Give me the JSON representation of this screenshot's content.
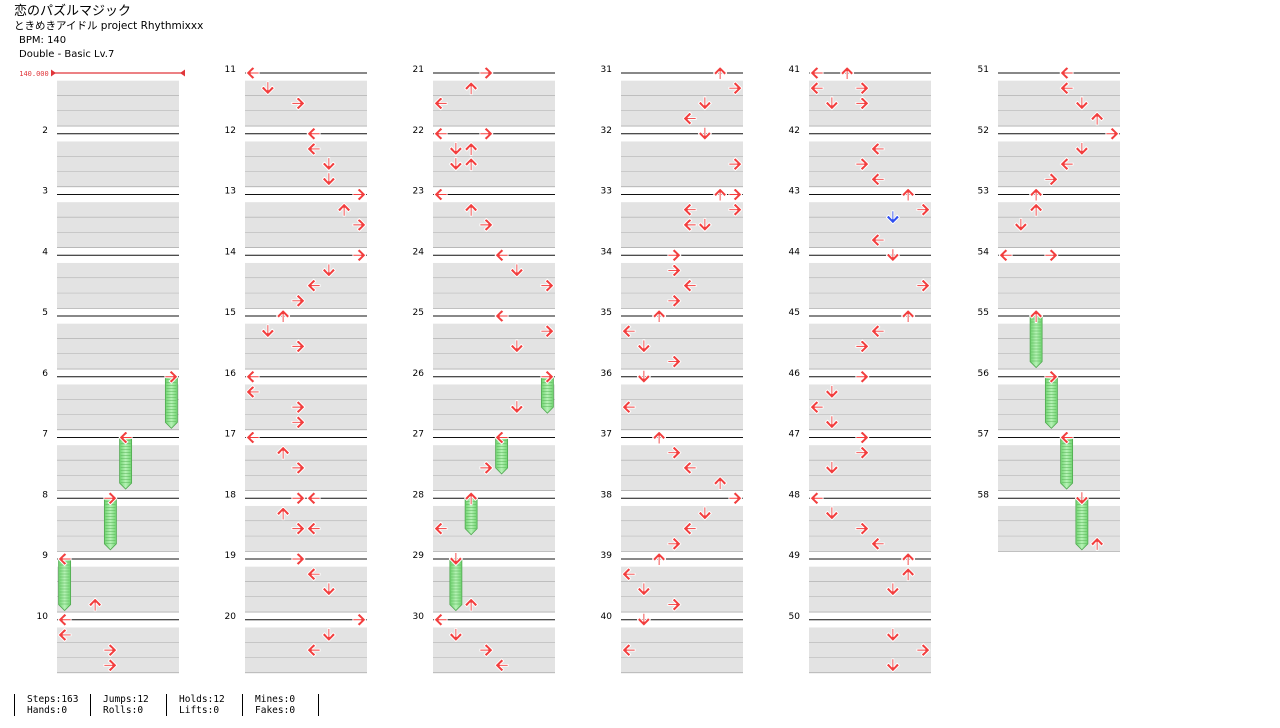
{
  "song": {
    "title": "恋のパズルマジック",
    "artist": "ときめきアイドル project Rhythmixxx",
    "bpm_label": "BPM: 140",
    "difficulty_label": "Double - Basic  Lv.7"
  },
  "bpm_marker": {
    "value": "140.000",
    "color": "#e0363a"
  },
  "colors": {
    "arrow_quarter": "#f23e3e",
    "arrow_eighth": "#2f4ff0",
    "hold_fill": "#8fe78f",
    "measure_band": "#e3e3e3"
  },
  "measures": [
    {
      "n": "1",
      "notes": []
    },
    {
      "n": "2",
      "notes": []
    },
    {
      "n": "3",
      "notes": []
    },
    {
      "n": "4",
      "notes": []
    },
    {
      "n": "5",
      "notes": []
    },
    {
      "n": "6",
      "notes": [
        {
          "b": 0,
          "l": 7,
          "hold": 3
        }
      ]
    },
    {
      "n": "7",
      "notes": [
        {
          "b": 0,
          "l": 4,
          "hold": 3
        }
      ]
    },
    {
      "n": "8",
      "notes": [
        {
          "b": 0,
          "l": 3,
          "hold": 3
        }
      ]
    },
    {
      "n": "9",
      "notes": [
        {
          "b": 0,
          "l": 0,
          "hold": 3
        },
        {
          "b": 3,
          "l": 2
        }
      ]
    },
    {
      "n": "10",
      "notes": [
        {
          "b": 0,
          "l": 0
        },
        {
          "b": 1,
          "l": 0
        },
        {
          "b": 2,
          "l": 3
        },
        {
          "b": 3,
          "l": 3
        }
      ]
    },
    {
      "n": "11",
      "notes": [
        {
          "b": 0,
          "l": 0
        },
        {
          "b": 1,
          "l": 1
        },
        {
          "b": 2,
          "l": 3
        }
      ]
    },
    {
      "n": "12",
      "notes": [
        {
          "b": 0,
          "l": 4
        },
        {
          "b": 1,
          "l": 4
        },
        {
          "b": 2,
          "l": 5
        },
        {
          "b": 3,
          "l": 5
        }
      ]
    },
    {
      "n": "13",
      "notes": [
        {
          "b": 0,
          "l": 7
        },
        {
          "b": 1,
          "l": 6
        },
        {
          "b": 2,
          "l": 7
        }
      ]
    },
    {
      "n": "14",
      "notes": [
        {
          "b": 0,
          "l": 7
        },
        {
          "b": 1,
          "l": 5
        },
        {
          "b": 2,
          "l": 4
        },
        {
          "b": 3,
          "l": 3
        }
      ]
    },
    {
      "n": "15",
      "notes": [
        {
          "b": 0,
          "l": 2
        },
        {
          "b": 1,
          "l": 1
        },
        {
          "b": 2,
          "l": 3
        }
      ]
    },
    {
      "n": "16",
      "notes": [
        {
          "b": 0,
          "l": 0
        },
        {
          "b": 1,
          "l": 0
        },
        {
          "b": 2,
          "l": 3
        },
        {
          "b": 3,
          "l": 3
        }
      ]
    },
    {
      "n": "17",
      "notes": [
        {
          "b": 0,
          "l": 0
        },
        {
          "b": 1,
          "l": 2
        },
        {
          "b": 2,
          "l": 3
        }
      ]
    },
    {
      "n": "18",
      "notes": [
        {
          "b": 0,
          "l": 3
        },
        {
          "b": 0,
          "l": 4
        },
        {
          "b": 1,
          "l": 2
        },
        {
          "b": 2,
          "l": 3
        },
        {
          "b": 2,
          "l": 4
        }
      ]
    },
    {
      "n": "19",
      "notes": [
        {
          "b": 0,
          "l": 3
        },
        {
          "b": 1,
          "l": 4
        },
        {
          "b": 2,
          "l": 5
        }
      ]
    },
    {
      "n": "20",
      "notes": [
        {
          "b": 0,
          "l": 7
        },
        {
          "b": 1,
          "l": 5
        },
        {
          "b": 2,
          "l": 4
        }
      ]
    },
    {
      "n": "21",
      "notes": [
        {
          "b": 0,
          "l": 3
        },
        {
          "b": 1,
          "l": 2
        },
        {
          "b": 2,
          "l": 0
        }
      ]
    },
    {
      "n": "22",
      "notes": [
        {
          "b": 0,
          "l": 0
        },
        {
          "b": 0,
          "l": 3
        },
        {
          "b": 1,
          "l": 1
        },
        {
          "b": 1,
          "l": 2
        },
        {
          "b": 2,
          "l": 1
        },
        {
          "b": 2,
          "l": 2
        }
      ]
    },
    {
      "n": "23",
      "notes": [
        {
          "b": 0,
          "l": 0
        },
        {
          "b": 1,
          "l": 2
        },
        {
          "b": 2,
          "l": 3
        }
      ]
    },
    {
      "n": "24",
      "notes": [
        {
          "b": 0,
          "l": 4
        },
        {
          "b": 1,
          "l": 5
        },
        {
          "b": 2,
          "l": 7
        }
      ]
    },
    {
      "n": "25",
      "notes": [
        {
          "b": 0,
          "l": 4
        },
        {
          "b": 1,
          "l": 7
        },
        {
          "b": 2,
          "l": 5
        }
      ]
    },
    {
      "n": "26",
      "notes": [
        {
          "b": 0,
          "l": 7,
          "hold": 2
        },
        {
          "b": 2,
          "l": 5
        }
      ]
    },
    {
      "n": "27",
      "notes": [
        {
          "b": 0,
          "l": 4,
          "hold": 2
        },
        {
          "b": 2,
          "l": 3
        }
      ]
    },
    {
      "n": "28",
      "notes": [
        {
          "b": 0,
          "l": 2,
          "hold": 2
        },
        {
          "b": 2,
          "l": 0
        }
      ]
    },
    {
      "n": "29",
      "notes": [
        {
          "b": 0,
          "l": 1,
          "hold": 3
        },
        {
          "b": 3,
          "l": 2
        }
      ]
    },
    {
      "n": "30",
      "notes": [
        {
          "b": 0,
          "l": 0
        },
        {
          "b": 1,
          "l": 1
        },
        {
          "b": 2,
          "l": 3
        },
        {
          "b": 3,
          "l": 4
        }
      ]
    },
    {
      "n": "31",
      "notes": [
        {
          "b": 0,
          "l": 6
        },
        {
          "b": 1,
          "l": 7
        },
        {
          "b": 2,
          "l": 5
        },
        {
          "b": 3,
          "l": 4
        }
      ]
    },
    {
      "n": "32",
      "notes": [
        {
          "b": 0,
          "l": 5
        },
        {
          "b": 2,
          "l": 7
        }
      ]
    },
    {
      "n": "33",
      "notes": [
        {
          "b": 0,
          "l": 6
        },
        {
          "b": 0,
          "l": 7
        },
        {
          "b": 1,
          "l": 4
        },
        {
          "b": 1,
          "l": 7
        },
        {
          "b": 2,
          "l": 4
        },
        {
          "b": 2,
          "l": 5
        }
      ]
    },
    {
      "n": "34",
      "notes": [
        {
          "b": 0,
          "l": 3
        },
        {
          "b": 1,
          "l": 3
        },
        {
          "b": 2,
          "l": 4
        },
        {
          "b": 3,
          "l": 3
        }
      ]
    },
    {
      "n": "35",
      "notes": [
        {
          "b": 0,
          "l": 2
        },
        {
          "b": 1,
          "l": 0
        },
        {
          "b": 2,
          "l": 1
        },
        {
          "b": 3,
          "l": 3
        }
      ]
    },
    {
      "n": "36",
      "notes": [
        {
          "b": 0,
          "l": 1
        },
        {
          "b": 2,
          "l": 0
        }
      ]
    },
    {
      "n": "37",
      "notes": [
        {
          "b": 0,
          "l": 2
        },
        {
          "b": 1,
          "l": 3
        },
        {
          "b": 2,
          "l": 4
        },
        {
          "b": 3,
          "l": 6
        }
      ]
    },
    {
      "n": "38",
      "notes": [
        {
          "b": 0,
          "l": 7
        },
        {
          "b": 1,
          "l": 5
        },
        {
          "b": 2,
          "l": 4
        },
        {
          "b": 3,
          "l": 3
        }
      ]
    },
    {
      "n": "39",
      "notes": [
        {
          "b": 0,
          "l": 2
        },
        {
          "b": 1,
          "l": 0
        },
        {
          "b": 2,
          "l": 1
        },
        {
          "b": 3,
          "l": 3
        }
      ]
    },
    {
      "n": "40",
      "notes": [
        {
          "b": 0,
          "l": 1
        },
        {
          "b": 2,
          "l": 0
        }
      ]
    },
    {
      "n": "41",
      "notes": [
        {
          "b": 0,
          "l": 0
        },
        {
          "b": 0,
          "l": 2
        },
        {
          "b": 1,
          "l": 0
        },
        {
          "b": 1,
          "l": 3
        },
        {
          "b": 2,
          "l": 1
        },
        {
          "b": 2,
          "l": 3
        }
      ]
    },
    {
      "n": "42",
      "notes": [
        {
          "b": 1,
          "l": 4
        },
        {
          "b": 2,
          "l": 3
        },
        {
          "b": 3,
          "l": 4
        }
      ]
    },
    {
      "n": "43",
      "notes": [
        {
          "b": 0,
          "l": 6
        },
        {
          "b": 1,
          "l": 7
        },
        {
          "b": 1.5,
          "l": 5
        },
        {
          "b": 3,
          "l": 4
        }
      ]
    },
    {
      "n": "44",
      "notes": [
        {
          "b": 0,
          "l": 5
        },
        {
          "b": 2,
          "l": 7
        }
      ]
    },
    {
      "n": "45",
      "notes": [
        {
          "b": 0,
          "l": 6
        },
        {
          "b": 1,
          "l": 4
        },
        {
          "b": 2,
          "l": 3
        }
      ]
    },
    {
      "n": "46",
      "notes": [
        {
          "b": 0,
          "l": 3
        },
        {
          "b": 1,
          "l": 1
        },
        {
          "b": 2,
          "l": 0
        },
        {
          "b": 3,
          "l": 1
        }
      ]
    },
    {
      "n": "47",
      "notes": [
        {
          "b": 0,
          "l": 3
        },
        {
          "b": 1,
          "l": 3
        },
        {
          "b": 2,
          "l": 1
        }
      ]
    },
    {
      "n": "48",
      "notes": [
        {
          "b": 0,
          "l": 0
        },
        {
          "b": 1,
          "l": 1
        },
        {
          "b": 2,
          "l": 3
        },
        {
          "b": 3,
          "l": 4
        }
      ]
    },
    {
      "n": "49",
      "notes": [
        {
          "b": 0,
          "l": 6
        },
        {
          "b": 1,
          "l": 6
        },
        {
          "b": 2,
          "l": 5
        }
      ]
    },
    {
      "n": "50",
      "notes": [
        {
          "b": 1,
          "l": 5
        },
        {
          "b": 2,
          "l": 7
        },
        {
          "b": 3,
          "l": 5
        }
      ]
    },
    {
      "n": "51",
      "notes": [
        {
          "b": 0,
          "l": 4
        },
        {
          "b": 1,
          "l": 4
        },
        {
          "b": 2,
          "l": 5
        },
        {
          "b": 3,
          "l": 6
        }
      ]
    },
    {
      "n": "52",
      "notes": [
        {
          "b": 0,
          "l": 7
        },
        {
          "b": 1,
          "l": 5
        },
        {
          "b": 2,
          "l": 4
        },
        {
          "b": 3,
          "l": 3
        }
      ]
    },
    {
      "n": "53",
      "notes": [
        {
          "b": 0,
          "l": 2
        },
        {
          "b": 1,
          "l": 2
        },
        {
          "b": 2,
          "l": 1
        }
      ]
    },
    {
      "n": "54",
      "notes": [
        {
          "b": 0,
          "l": 0
        },
        {
          "b": 0,
          "l": 3
        }
      ]
    },
    {
      "n": "55",
      "notes": [
        {
          "b": 0,
          "l": 2,
          "hold": 3
        }
      ]
    },
    {
      "n": "56",
      "notes": [
        {
          "b": 0,
          "l": 3,
          "hold": 3
        }
      ]
    },
    {
      "n": "57",
      "notes": [
        {
          "b": 0,
          "l": 4,
          "hold": 3
        }
      ]
    },
    {
      "n": "58",
      "notes": [
        {
          "b": 0,
          "l": 5,
          "hold": 3
        },
        {
          "b": 3,
          "l": 6
        }
      ]
    }
  ],
  "stats": [
    {
      "line1": "Steps:163",
      "line2": "Hands:0"
    },
    {
      "line1": "Jumps:12",
      "line2": "Rolls:0"
    },
    {
      "line1": "Holds:12",
      "line2": "Lifts:0"
    },
    {
      "line1": "Mines:0",
      "line2": "Fakes:0"
    }
  ]
}
